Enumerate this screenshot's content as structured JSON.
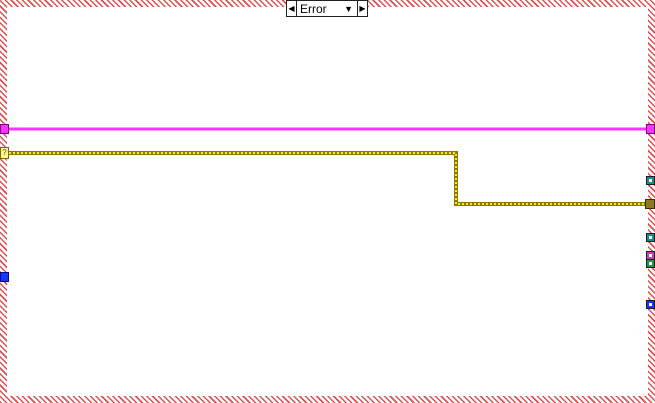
{
  "case_structure": {
    "selector": {
      "value": "Error",
      "prev_arrow": "◀",
      "next_arrow": "▶",
      "dropdown_arrow": "▼"
    }
  },
  "tunnels": {
    "variant_in_glyph": "?"
  },
  "colors": {
    "frame_hatch": "#e05050",
    "error_wire": "#ff33ff",
    "variant_wire": "#c8b400",
    "blue_tunnel": "#1a32ff",
    "teal_tunnel": "#1a8a8a",
    "purple_tunnel": "#c040c0",
    "green_tunnel": "#1a9a3a"
  }
}
